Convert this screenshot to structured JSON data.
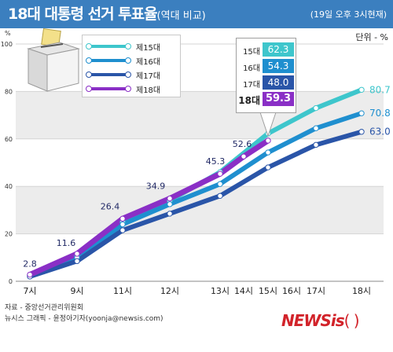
{
  "header": {
    "title": "18대 대통령 선거 투표율",
    "title_sub": "(역대 비교)",
    "timestamp": "(19일 오후 3시현재)"
  },
  "unit_label": "단위 - %",
  "y_unit_symbol": "%",
  "source": "자료 - 중앙선거관리위원회",
  "credit": "뉴시스 그래픽 - 윤정아기자(yoonja@newsis.com)",
  "logo": {
    "text": "NEWSis",
    "paren": "( )"
  },
  "colors": {
    "header_bg": "#3b7fbf",
    "band": "#ececec",
    "s15": "#3ec6cc",
    "s16": "#1f8fcf",
    "s17": "#2a55a8",
    "s18": "#8a2fc6",
    "end_label_15": "#3ec6cc",
    "end_label_16": "#1f8fcf",
    "end_label_17": "#2a55a8",
    "point_label": "#222a66"
  },
  "legend": [
    {
      "label": "제15대",
      "color": "#3ec6cc"
    },
    {
      "label": "제16대",
      "color": "#1f8fcf"
    },
    {
      "label": "제17대",
      "color": "#2a55a8"
    },
    {
      "label": "제18대",
      "color": "#8a2fc6"
    }
  ],
  "callout": [
    {
      "year": "15대",
      "value": "62.3",
      "color": "#3ec6cc",
      "bold": false
    },
    {
      "year": "16대",
      "value": "54.3",
      "color": "#1f8fcf",
      "bold": false
    },
    {
      "year": "17대",
      "value": "48.0",
      "color": "#2a55a8",
      "bold": false
    },
    {
      "year": "18대",
      "value": "59.3",
      "color": "#8a2fc6",
      "bold": true
    }
  ],
  "chart_data": {
    "type": "line",
    "title": "18대 대통령 선거 투표율(역대 비교)",
    "ylabel": "%",
    "ylim": [
      0,
      100
    ],
    "yticks": [
      0,
      20,
      40,
      60,
      80,
      100
    ],
    "grid": true,
    "x_ticks": [
      {
        "label": "7시",
        "hour": 7
      },
      {
        "label": "9시",
        "hour": 9
      },
      {
        "label": "11시",
        "hour": 11
      },
      {
        "label": "12시",
        "hour": 12
      },
      {
        "label": "13시",
        "hour": 13
      },
      {
        "label": "14시",
        "hour": 14
      },
      {
        "label": "15시",
        "hour": 15
      },
      {
        "label": "16시",
        "hour": 16
      },
      {
        "label": "17시",
        "hour": 17
      },
      {
        "label": "18시",
        "hour": 18
      }
    ],
    "x_positions": {
      "7": 38,
      "9": 98,
      "11": 156,
      "12": 216,
      "13": 280,
      "14": 310,
      "15": 341,
      "16": 371,
      "17": 402,
      "18": 460
    },
    "series": [
      {
        "name": "제15대",
        "color": "#3ec6cc",
        "points": [
          [
            7,
            2.5
          ],
          [
            9,
            10.7
          ],
          [
            11,
            25.0
          ],
          [
            12,
            34.0
          ],
          [
            13,
            46.0
          ],
          [
            15,
            62.3
          ],
          [
            17,
            73.0
          ],
          [
            18,
            80.7
          ]
        ],
        "end_label": "80.7"
      },
      {
        "name": "제16대",
        "color": "#1f8fcf",
        "points": [
          [
            7,
            2.5
          ],
          [
            9,
            10.0
          ],
          [
            11,
            24.0
          ],
          [
            12,
            32.5
          ],
          [
            13,
            41.0
          ],
          [
            15,
            54.3
          ],
          [
            17,
            64.5
          ],
          [
            18,
            70.8
          ]
        ],
        "end_label": "70.8"
      },
      {
        "name": "제17대",
        "color": "#2a55a8",
        "points": [
          [
            7,
            2.0
          ],
          [
            9,
            8.5
          ],
          [
            11,
            21.5
          ],
          [
            12,
            28.5
          ],
          [
            13,
            36.0
          ],
          [
            15,
            48.0
          ],
          [
            17,
            57.5
          ],
          [
            18,
            63.0
          ]
        ],
        "end_label": "63.0"
      },
      {
        "name": "제18대",
        "color": "#8a2fc6",
        "points": [
          [
            7,
            2.8
          ],
          [
            9,
            11.6
          ],
          [
            11,
            26.4
          ],
          [
            12,
            34.9
          ],
          [
            13,
            45.3
          ],
          [
            14,
            52.6
          ],
          [
            15,
            59.3
          ]
        ],
        "point_labels": [
          "2.8",
          "11.6",
          "26.4",
          "34.9",
          "45.3",
          "52.6",
          ""
        ]
      }
    ]
  }
}
